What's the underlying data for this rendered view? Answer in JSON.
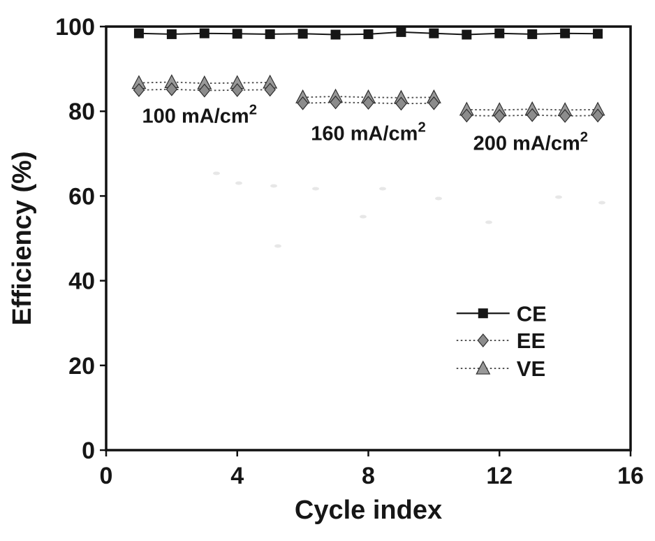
{
  "colors": {
    "foreground": "#161616",
    "axis": "#111111",
    "diamond_fill": "#8c8c8c",
    "triangle_fill": "#999999",
    "marker_stroke": "#2e2e2e",
    "dotted_line": "#4a4a4a",
    "background": "#ffffff"
  },
  "chart_data": {
    "type": "scatter",
    "title": "",
    "xlabel": "Cycle index",
    "ylabel": "Efficiency (%)",
    "xlim": [
      0,
      16
    ],
    "ylim": [
      0,
      100
    ],
    "xticks": [
      0,
      4,
      8,
      12,
      16
    ],
    "yticks": [
      0,
      20,
      40,
      60,
      80,
      100
    ],
    "grid": false,
    "legend_position": "center-right",
    "x": [
      1,
      2,
      3,
      4,
      5,
      6,
      7,
      8,
      9,
      10,
      11,
      12,
      13,
      14,
      15
    ],
    "series": [
      {
        "name": "CE",
        "marker": "square",
        "line_style": "solid",
        "segments": [
          [
            1,
            15
          ]
        ],
        "values": [
          98.4,
          98.2,
          98.4,
          98.3,
          98.2,
          98.3,
          98.1,
          98.2,
          98.7,
          98.4,
          98.1,
          98.4,
          98.2,
          98.4,
          98.3
        ]
      },
      {
        "name": "EE",
        "marker": "diamond",
        "line_style": "dotted",
        "segments": [
          [
            1,
            5
          ],
          [
            6,
            10
          ],
          [
            11,
            15
          ]
        ],
        "values": [
          85.0,
          85.2,
          84.9,
          85.0,
          85.1,
          81.9,
          82.1,
          82.0,
          81.8,
          81.9,
          79.0,
          78.9,
          79.1,
          78.9,
          79.0
        ]
      },
      {
        "name": "VE",
        "marker": "triangle",
        "line_style": "dotted",
        "segments": [
          [
            1,
            5
          ],
          [
            6,
            10
          ],
          [
            11,
            15
          ]
        ],
        "values": [
          86.7,
          86.9,
          86.6,
          86.7,
          86.8,
          83.3,
          83.5,
          83.3,
          83.2,
          83.3,
          80.4,
          80.3,
          80.5,
          80.3,
          80.4
        ]
      }
    ],
    "annotations": [
      {
        "text": "100 mA/cm",
        "sup": "2",
        "x": 2.85,
        "y": 79.0
      },
      {
        "text": "160 mA/cm",
        "sup": "2",
        "x": 8.0,
        "y": 74.8
      },
      {
        "text": "200 mA/cm",
        "sup": "2",
        "x": 12.95,
        "y": 72.5
      }
    ],
    "legend": {
      "entries": [
        "CE",
        "EE",
        "VE"
      ],
      "x_center": 11.5,
      "y_values": [
        32.3,
        25.9,
        19.3
      ]
    }
  }
}
